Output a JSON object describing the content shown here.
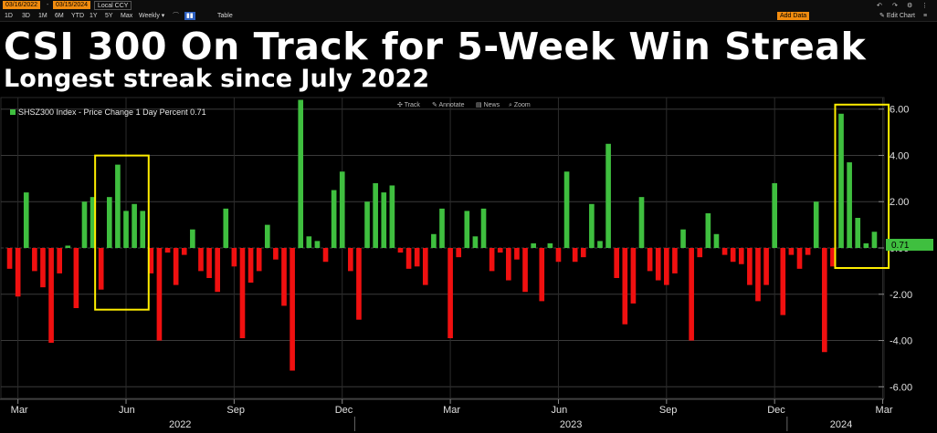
{
  "toolbar": {
    "start_date": "03/16/2022",
    "end_date": "03/15/2024",
    "currency": "Local CCY",
    "ranges": [
      "1D",
      "3D",
      "1M",
      "6M",
      "YTD",
      "1Y",
      "5Y",
      "Max"
    ],
    "frequency": "Weekly",
    "table_label": "Table",
    "add_data": "Add Data",
    "edit_chart": "Edit Chart"
  },
  "header": {
    "title": "CSI 300 On Track for 5-Week Win Streak",
    "subtitle": "Longest streak since July 2022"
  },
  "chart_tools": [
    "Track",
    "Annotate",
    "News",
    "Zoom"
  ],
  "colors": {
    "up": "#3fbf3f",
    "down": "#f01010",
    "highlight": "#ffee00",
    "background": "#000000",
    "grid": "#3a3a3a"
  },
  "chart_data": {
    "type": "bar",
    "legend": "SHSZ300 Index - Price Change 1 Day Percent 0.71",
    "last_value_label": "0.71",
    "ylim": [
      -6.5,
      6.5
    ],
    "yticks": [
      "6.00",
      "4.00",
      "2.00",
      "0.00",
      "-2.00",
      "-4.00",
      "-6.00"
    ],
    "ytick_values": [
      6,
      4,
      2,
      0,
      -2,
      -4,
      -6
    ],
    "xticks": [
      {
        "label": "Mar",
        "week": 1
      },
      {
        "label": "Jun",
        "week": 14
      },
      {
        "label": "Sep",
        "week": 27
      },
      {
        "label": "Dec",
        "week": 40
      },
      {
        "label": "Mar",
        "week": 53
      },
      {
        "label": "Jun",
        "week": 66
      },
      {
        "label": "Sep",
        "week": 79
      },
      {
        "label": "Dec",
        "week": 92
      },
      {
        "label": "Mar",
        "week": 105
      }
    ],
    "years": [
      {
        "label": "2022",
        "start": 0,
        "end": 42
      },
      {
        "label": "2023",
        "start": 42,
        "end": 94
      },
      {
        "label": "2024",
        "start": 94,
        "end": 107
      }
    ],
    "highlight_ranges": [
      {
        "from": 11,
        "to": 16
      },
      {
        "from": 100,
        "to": 105
      }
    ],
    "values": [
      -0.9,
      -2.1,
      2.4,
      -1.0,
      -1.7,
      -4.1,
      -1.1,
      0.1,
      -2.6,
      2.0,
      2.2,
      -1.8,
      2.2,
      3.6,
      1.6,
      1.9,
      1.6,
      -1.1,
      -4.0,
      -0.2,
      -1.6,
      -0.3,
      0.8,
      -1.0,
      -1.3,
      -1.9,
      1.7,
      -0.8,
      -3.9,
      -1.5,
      -1.0,
      1.0,
      -0.5,
      -2.5,
      -5.3,
      6.4,
      0.5,
      0.3,
      -0.6,
      2.5,
      3.3,
      -1.0,
      -3.1,
      2.0,
      2.8,
      2.4,
      2.7,
      -0.2,
      -0.9,
      -0.8,
      -1.6,
      0.6,
      1.7,
      -3.9,
      -0.4,
      1.6,
      0.5,
      1.7,
      -1.0,
      -0.2,
      -1.4,
      -0.5,
      -1.9,
      0.2,
      -2.3,
      0.2,
      -0.6,
      3.3,
      -0.6,
      -0.4,
      1.9,
      0.3,
      4.5,
      -1.3,
      -3.3,
      -2.4,
      2.2,
      -1.0,
      -1.4,
      -1.6,
      -1.1,
      0.8,
      -4.0,
      -0.4,
      1.5,
      0.6,
      -0.3,
      -0.6,
      -0.7,
      -1.6,
      -2.3,
      -1.6,
      2.8,
      -2.9,
      -0.3,
      -0.9,
      -0.3,
      2.0,
      -4.5,
      -0.8,
      5.8,
      3.7,
      1.3,
      0.2,
      0.7
    ]
  }
}
